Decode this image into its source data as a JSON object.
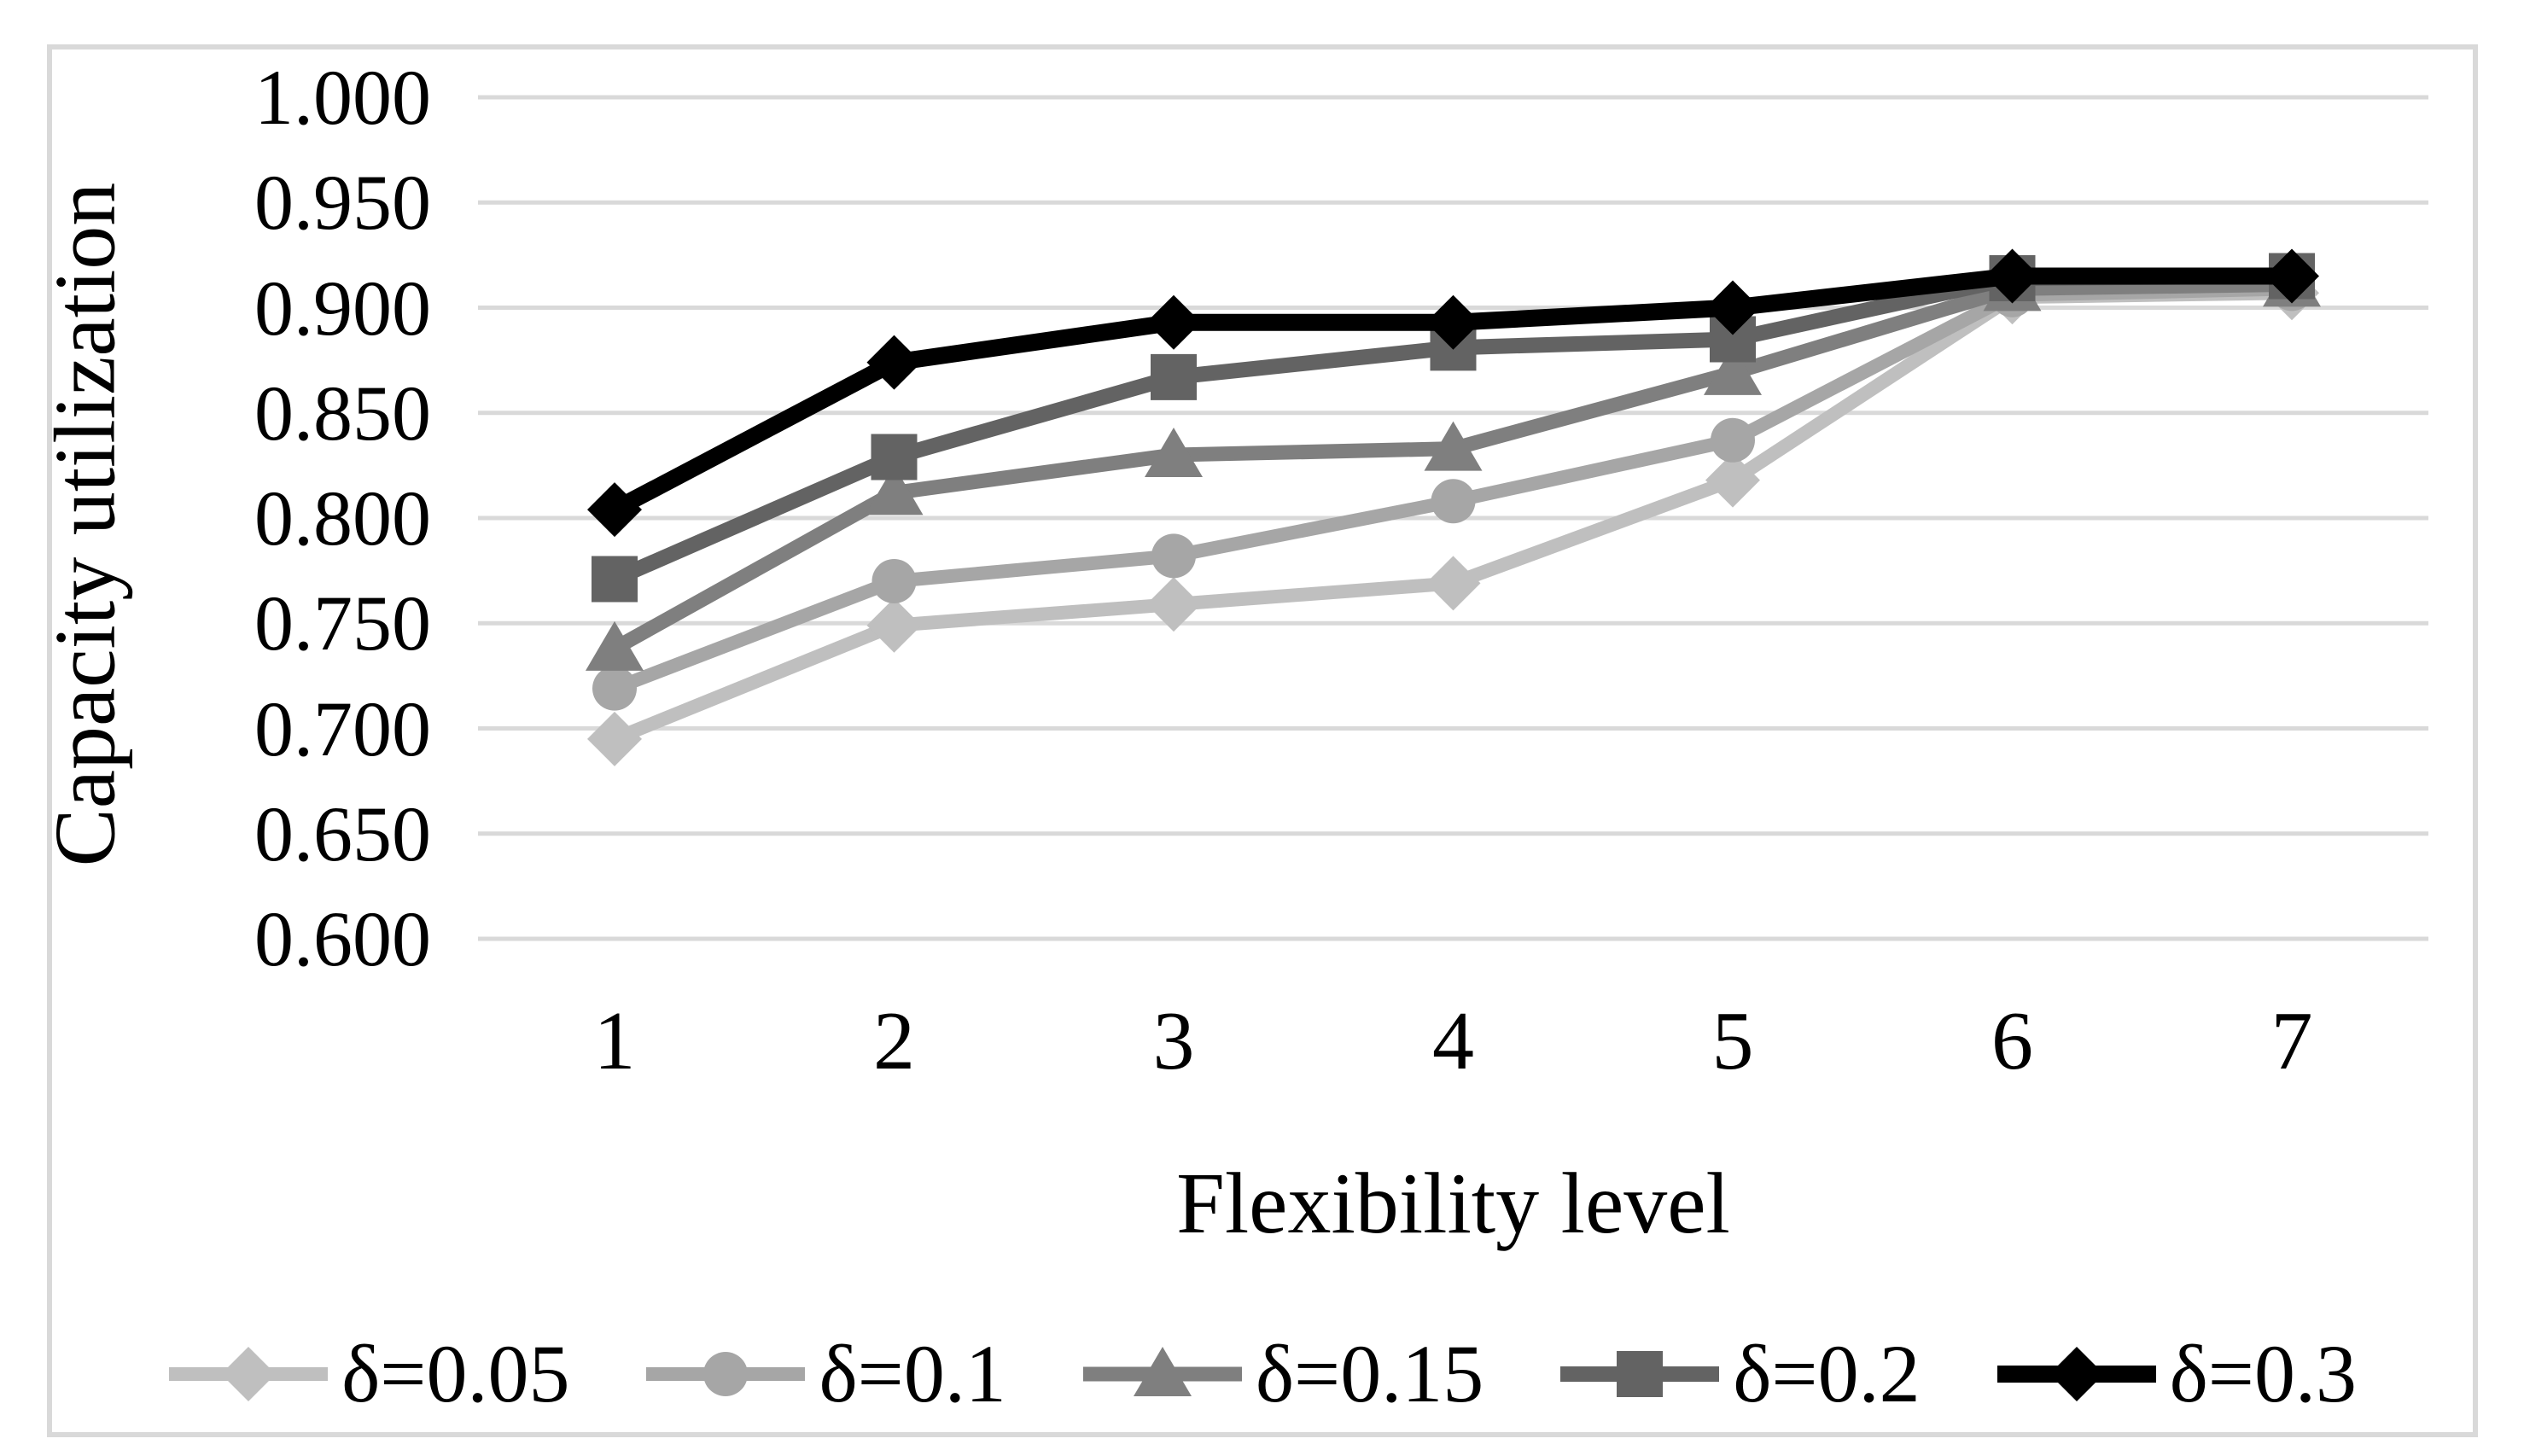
{
  "chart_data": {
    "type": "line",
    "title": "",
    "xlabel": "Flexibility level",
    "ylabel": "Capacity utilization",
    "x": [
      1,
      2,
      3,
      4,
      5,
      6,
      7
    ],
    "x_tick_labels": [
      "1",
      "2",
      "3",
      "4",
      "5",
      "6",
      "7"
    ],
    "y_tick_labels": [
      "1.000",
      "0.950",
      "0.900",
      "0.850",
      "0.800",
      "0.750",
      "0.700",
      "0.650",
      "0.600"
    ],
    "ylim": [
      0.6,
      1.0
    ],
    "y_tick_step": 0.05,
    "grid": true,
    "legend_position": "bottom",
    "series": [
      {
        "name": "δ=0.05",
        "marker": "diamond",
        "color": "#bfbfbf",
        "line_width": 16,
        "values": [
          0.695,
          0.749,
          0.759,
          0.769,
          0.818,
          0.905,
          0.907
        ]
      },
      {
        "name": "δ=0.1",
        "marker": "circle",
        "color": "#a6a6a6",
        "line_width": 16,
        "values": [
          0.719,
          0.77,
          0.782,
          0.808,
          0.837,
          0.906,
          0.909
        ]
      },
      {
        "name": "δ=0.15",
        "marker": "triangle",
        "color": "#7f7f7f",
        "line_width": 17,
        "values": [
          0.738,
          0.812,
          0.83,
          0.833,
          0.869,
          0.909,
          0.911
        ]
      },
      {
        "name": "δ=0.2",
        "marker": "square",
        "color": "#636363",
        "line_width": 18,
        "values": [
          0.771,
          0.829,
          0.867,
          0.881,
          0.885,
          0.914,
          0.915
        ]
      },
      {
        "name": "δ=0.3",
        "marker": "diamond",
        "color": "#000000",
        "line_width": 20,
        "values": [
          0.804,
          0.874,
          0.893,
          0.893,
          0.9,
          0.915,
          0.915
        ]
      }
    ]
  },
  "colors": {
    "gridline": "#d9d9d9",
    "frame_border": "#d9d9d9",
    "text": "#000000",
    "background": "#ffffff"
  }
}
